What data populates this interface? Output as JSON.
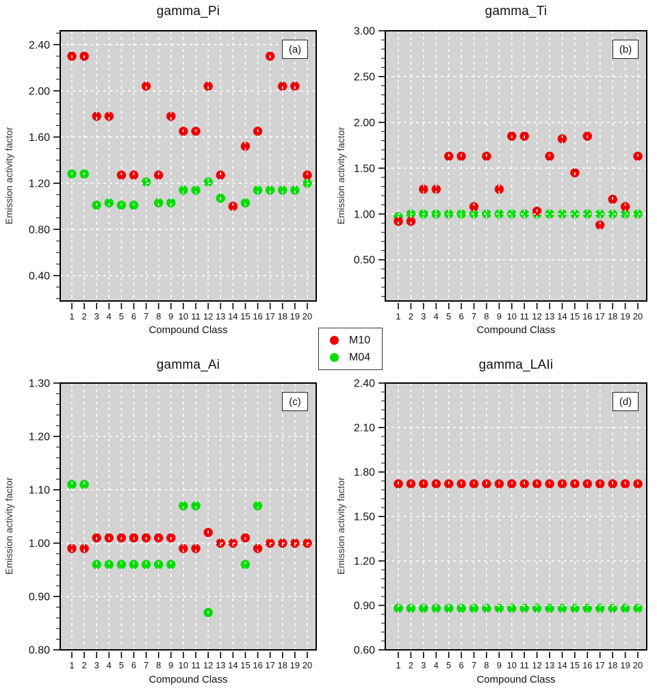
{
  "legend": {
    "items": [
      {
        "label": "M10",
        "color": "#ee0000"
      },
      {
        "label": "M04",
        "color": "#00dd00"
      }
    ]
  },
  "ui_colors": {
    "m10_red": "#ee0000",
    "m04_green": "#00dd00",
    "plot_background": "#d3d3d3",
    "gridline": "#ffffff",
    "frame": "#000000"
  },
  "chart_data": [
    {
      "type": "scatter",
      "title": "gamma_Pi",
      "panel_label": "(a)",
      "xlabel": "Compound Class",
      "ylabel": "Emission activity factor",
      "x": [
        1,
        2,
        3,
        4,
        5,
        6,
        7,
        8,
        9,
        10,
        11,
        12,
        13,
        14,
        15,
        16,
        17,
        18,
        19,
        20
      ],
      "ylim": [
        0.18,
        2.52
      ],
      "yticks": [
        0.4,
        0.8,
        1.2,
        1.6,
        2.0,
        2.4
      ],
      "ytick_labels": [
        "0.40",
        "0.80",
        "1.20",
        "1.60",
        "2.00",
        "2.40"
      ],
      "minor_tick_step": 0.1,
      "grid": true,
      "series": [
        {
          "name": "M10",
          "color": "#ee0000",
          "values": [
            2.3,
            2.3,
            1.78,
            1.78,
            1.27,
            1.27,
            2.04,
            1.27,
            1.78,
            1.65,
            1.65,
            2.04,
            1.27,
            1.0,
            1.52,
            1.65,
            2.3,
            2.04,
            2.04,
            1.27
          ]
        },
        {
          "name": "M04",
          "color": "#00dd00",
          "values": [
            1.28,
            1.28,
            1.01,
            1.03,
            1.01,
            1.01,
            1.21,
            1.03,
            1.03,
            1.14,
            1.14,
            1.21,
            1.07,
            1.0,
            1.03,
            1.14,
            1.14,
            1.14,
            1.14,
            1.2
          ]
        }
      ]
    },
    {
      "type": "scatter",
      "title": "gamma_Ti",
      "panel_label": "(b)",
      "xlabel": "Compound Class",
      "ylabel": "Emission activity factor",
      "x": [
        1,
        2,
        3,
        4,
        5,
        6,
        7,
        8,
        9,
        10,
        11,
        12,
        13,
        14,
        15,
        16,
        17,
        18,
        19,
        20
      ],
      "ylim": [
        0.05,
        3.0
      ],
      "yticks": [
        0.5,
        1.0,
        1.5,
        2.0,
        2.5,
        3.0
      ],
      "ytick_labels": [
        "0.50",
        "1.00",
        "1.50",
        "2.00",
        "2.50",
        "3.00"
      ],
      "minor_tick_step": 0.1,
      "grid": true,
      "series": [
        {
          "name": "M10",
          "color": "#ee0000",
          "values": [
            0.92,
            0.92,
            1.27,
            1.27,
            1.63,
            1.63,
            1.08,
            1.63,
            1.27,
            1.85,
            1.85,
            1.03,
            1.63,
            1.82,
            1.45,
            1.85,
            0.88,
            1.16,
            1.08,
            1.63
          ]
        },
        {
          "name": "M04",
          "color": "#00dd00",
          "values": [
            0.97,
            1.0,
            1.0,
            1.0,
            1.0,
            1.0,
            1.0,
            1.0,
            1.0,
            1.0,
            1.0,
            1.0,
            1.0,
            1.0,
            1.0,
            1.0,
            1.0,
            1.0,
            1.0,
            1.0
          ]
        }
      ]
    },
    {
      "type": "scatter",
      "title": "gamma_Ai",
      "panel_label": "(c)",
      "xlabel": "Compound Class",
      "ylabel": "Emission activity factor",
      "x": [
        1,
        2,
        3,
        4,
        5,
        6,
        7,
        8,
        9,
        10,
        11,
        12,
        13,
        14,
        15,
        16,
        17,
        18,
        19,
        20
      ],
      "ylim": [
        0.8,
        1.3
      ],
      "yticks": [
        0.8,
        0.9,
        1.0,
        1.1,
        1.2,
        1.3
      ],
      "ytick_labels": [
        "0.80",
        "0.90",
        "1.00",
        "1.10",
        "1.20",
        "1.30"
      ],
      "minor_tick_step": 0.02,
      "grid": true,
      "series": [
        {
          "name": "M10",
          "color": "#ee0000",
          "values": [
            0.99,
            0.99,
            1.01,
            1.01,
            1.01,
            1.01,
            1.01,
            1.01,
            1.01,
            0.99,
            0.99,
            1.02,
            1.0,
            1.0,
            1.01,
            0.99,
            1.0,
            1.0,
            1.0,
            1.0
          ]
        },
        {
          "name": "M04",
          "color": "#00dd00",
          "values": [
            1.11,
            1.11,
            0.96,
            0.96,
            0.96,
            0.96,
            0.96,
            0.96,
            0.96,
            1.07,
            1.07,
            0.87,
            1.0,
            1.0,
            0.96,
            1.07,
            1.0,
            1.0,
            1.0,
            1.0
          ]
        }
      ]
    },
    {
      "type": "scatter",
      "title": "gamma_LAIi",
      "panel_label": "(d)",
      "xlabel": "Compound Class",
      "ylabel": "Emission activity factor",
      "x": [
        1,
        2,
        3,
        4,
        5,
        6,
        7,
        8,
        9,
        10,
        11,
        12,
        13,
        14,
        15,
        16,
        17,
        18,
        19,
        20
      ],
      "ylim": [
        0.6,
        2.4
      ],
      "yticks": [
        0.6,
        0.9,
        1.2,
        1.5,
        1.8,
        2.1,
        2.4
      ],
      "ytick_labels": [
        "0.60",
        "0.90",
        "1.20",
        "1.50",
        "1.80",
        "2.10",
        "2.40"
      ],
      "minor_tick_step": 0.06,
      "grid": true,
      "series": [
        {
          "name": "M10",
          "color": "#ee0000",
          "values": [
            1.72,
            1.72,
            1.72,
            1.72,
            1.72,
            1.72,
            1.72,
            1.72,
            1.72,
            1.72,
            1.72,
            1.72,
            1.72,
            1.72,
            1.72,
            1.72,
            1.72,
            1.72,
            1.72,
            1.72
          ]
        },
        {
          "name": "M04",
          "color": "#00dd00",
          "values": [
            0.88,
            0.88,
            0.88,
            0.88,
            0.88,
            0.88,
            0.88,
            0.88,
            0.88,
            0.88,
            0.88,
            0.88,
            0.88,
            0.88,
            0.88,
            0.88,
            0.88,
            0.88,
            0.88,
            0.88
          ]
        }
      ]
    }
  ]
}
